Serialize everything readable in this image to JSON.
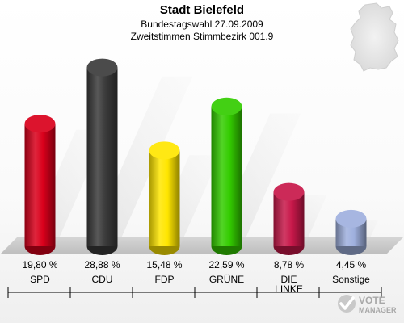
{
  "header": {
    "title": "Stadt Bielefeld",
    "subtitle": "Bundestagswahl 27.09.2009",
    "subtitle2": "Zweitstimmen Stimmbezirk 001.9"
  },
  "logo": {
    "line1": "VOTE",
    "line2": "MANAGER"
  },
  "chart_data": {
    "type": "bar",
    "title": "Stadt Bielefeld",
    "subtitle": "Bundestagswahl 27.09.2009 — Zweitstimmen Stimmbezirk 001.9",
    "categories": [
      "SPD",
      "CDU",
      "FDP",
      "GRÜNE",
      "DIE LINKE",
      "Sonstige"
    ],
    "category_lines": [
      [
        "SPD"
      ],
      [
        "CDU"
      ],
      [
        "FDP"
      ],
      [
        "GRÜNE"
      ],
      [
        "DIE",
        "LINKE"
      ],
      [
        "Sonstige"
      ]
    ],
    "values": [
      19.8,
      28.88,
      15.48,
      22.59,
      8.78,
      4.45
    ],
    "value_labels": [
      "19,80 %",
      "28,88 %",
      "15,48 %",
      "22,59 %",
      "8,78 %",
      "4,45 %"
    ],
    "colors": [
      "#d9001b",
      "#3b3b3b",
      "#ffe600",
      "#33cc00",
      "#c8184a",
      "#9fb0de"
    ],
    "unit": "%",
    "ylim": [
      0,
      30
    ],
    "grid": false,
    "legend": "none"
  }
}
